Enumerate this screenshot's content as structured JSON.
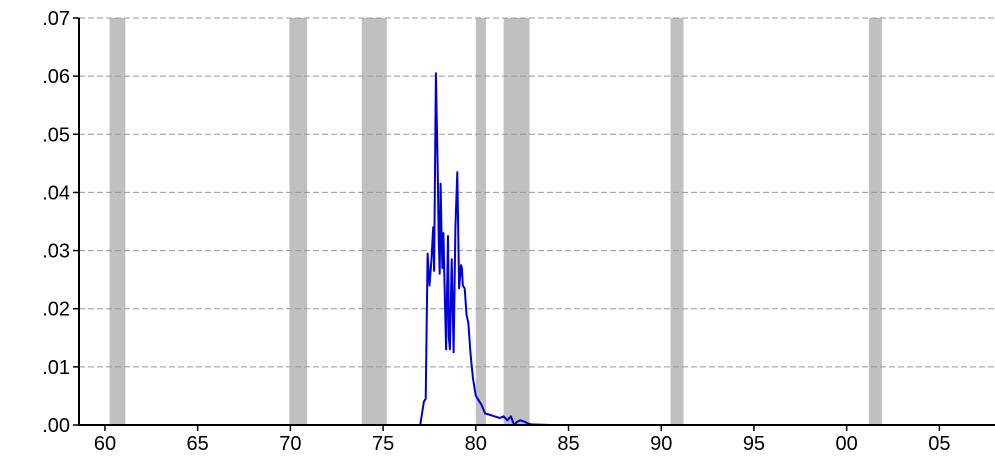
{
  "chart_data": {
    "type": "line",
    "title": "",
    "xlabel": "",
    "ylabel": "",
    "xlim": [
      1958.6,
      2008.0
    ],
    "ylim": [
      0.0,
      0.07
    ],
    "grid": "horizontal-dashed",
    "x_ticks": [
      {
        "value": 1960,
        "label": "60"
      },
      {
        "value": 1965,
        "label": "65"
      },
      {
        "value": 1970,
        "label": "70"
      },
      {
        "value": 1975,
        "label": "75"
      },
      {
        "value": 1980,
        "label": "80"
      },
      {
        "value": 1985,
        "label": "85"
      },
      {
        "value": 1990,
        "label": "90"
      },
      {
        "value": 1995,
        "label": "95"
      },
      {
        "value": 2000,
        "label": "00"
      },
      {
        "value": 2005,
        "label": "05"
      }
    ],
    "y_ticks": [
      {
        "value": 0.0,
        "label": ".00"
      },
      {
        "value": 0.01,
        "label": ".01"
      },
      {
        "value": 0.02,
        "label": ".02"
      },
      {
        "value": 0.03,
        "label": ".03"
      },
      {
        "value": 0.04,
        "label": ".04"
      },
      {
        "value": 0.05,
        "label": ".05"
      },
      {
        "value": 0.06,
        "label": ".06"
      },
      {
        "value": 0.07,
        "label": ".07"
      }
    ],
    "shaded_periods": [
      [
        1960.25,
        1961.1
      ],
      [
        1969.95,
        1970.9
      ],
      [
        1973.85,
        1975.2
      ],
      [
        1980.0,
        1980.55
      ],
      [
        1981.5,
        1982.9
      ],
      [
        1990.5,
        1991.2
      ],
      [
        2001.2,
        2001.9
      ]
    ],
    "colors": {
      "series": "#0000dd",
      "shading": "#c0c0c0",
      "grid": "#999999",
      "axis": "#000000"
    },
    "series": [
      {
        "x": [
          1958.6,
          1977.0,
          1977.2,
          1977.3,
          1977.4,
          1977.5,
          1977.6,
          1977.7,
          1977.75,
          1977.85,
          1977.95,
          1978.0,
          1978.05,
          1978.1,
          1978.15,
          1978.2,
          1978.25,
          1978.3,
          1978.4,
          1978.5,
          1978.55,
          1978.6,
          1978.7,
          1978.8,
          1978.9,
          1979.0,
          1979.1,
          1979.2,
          1979.25,
          1979.3,
          1979.4,
          1979.5,
          1979.6,
          1979.7,
          1979.75,
          1979.85,
          1980.0,
          1980.1,
          1980.2,
          1980.3,
          1980.5,
          1980.7,
          1981.0,
          1981.3,
          1981.5,
          1981.7,
          1981.9,
          1982.0,
          1982.1,
          1982.2,
          1982.4,
          1982.6,
          1982.8,
          1983.0,
          1984.0,
          1986.0,
          1988.0,
          1990.0,
          1992.0,
          1994.0,
          1996.0,
          1998.0
        ],
        "y": [
          0.0,
          0.0,
          0.004,
          0.0045,
          0.0295,
          0.024,
          0.028,
          0.034,
          0.0265,
          0.0605,
          0.043,
          0.032,
          0.026,
          0.0415,
          0.033,
          0.027,
          0.033,
          0.026,
          0.013,
          0.0325,
          0.015,
          0.013,
          0.0285,
          0.0125,
          0.034,
          0.0435,
          0.0235,
          0.0275,
          0.027,
          0.024,
          0.0235,
          0.019,
          0.0175,
          0.013,
          0.011,
          0.008,
          0.005,
          0.0045,
          0.004,
          0.0035,
          0.002,
          0.0018,
          0.0015,
          0.0012,
          0.0015,
          0.0008,
          0.0015,
          0.0005,
          0.0,
          0.0005,
          0.0008,
          0.0006,
          0.0003,
          0.0001,
          0.0,
          0.0,
          0.0,
          0.0,
          0.0,
          0.0,
          0.0,
          0.0
        ]
      }
    ]
  }
}
